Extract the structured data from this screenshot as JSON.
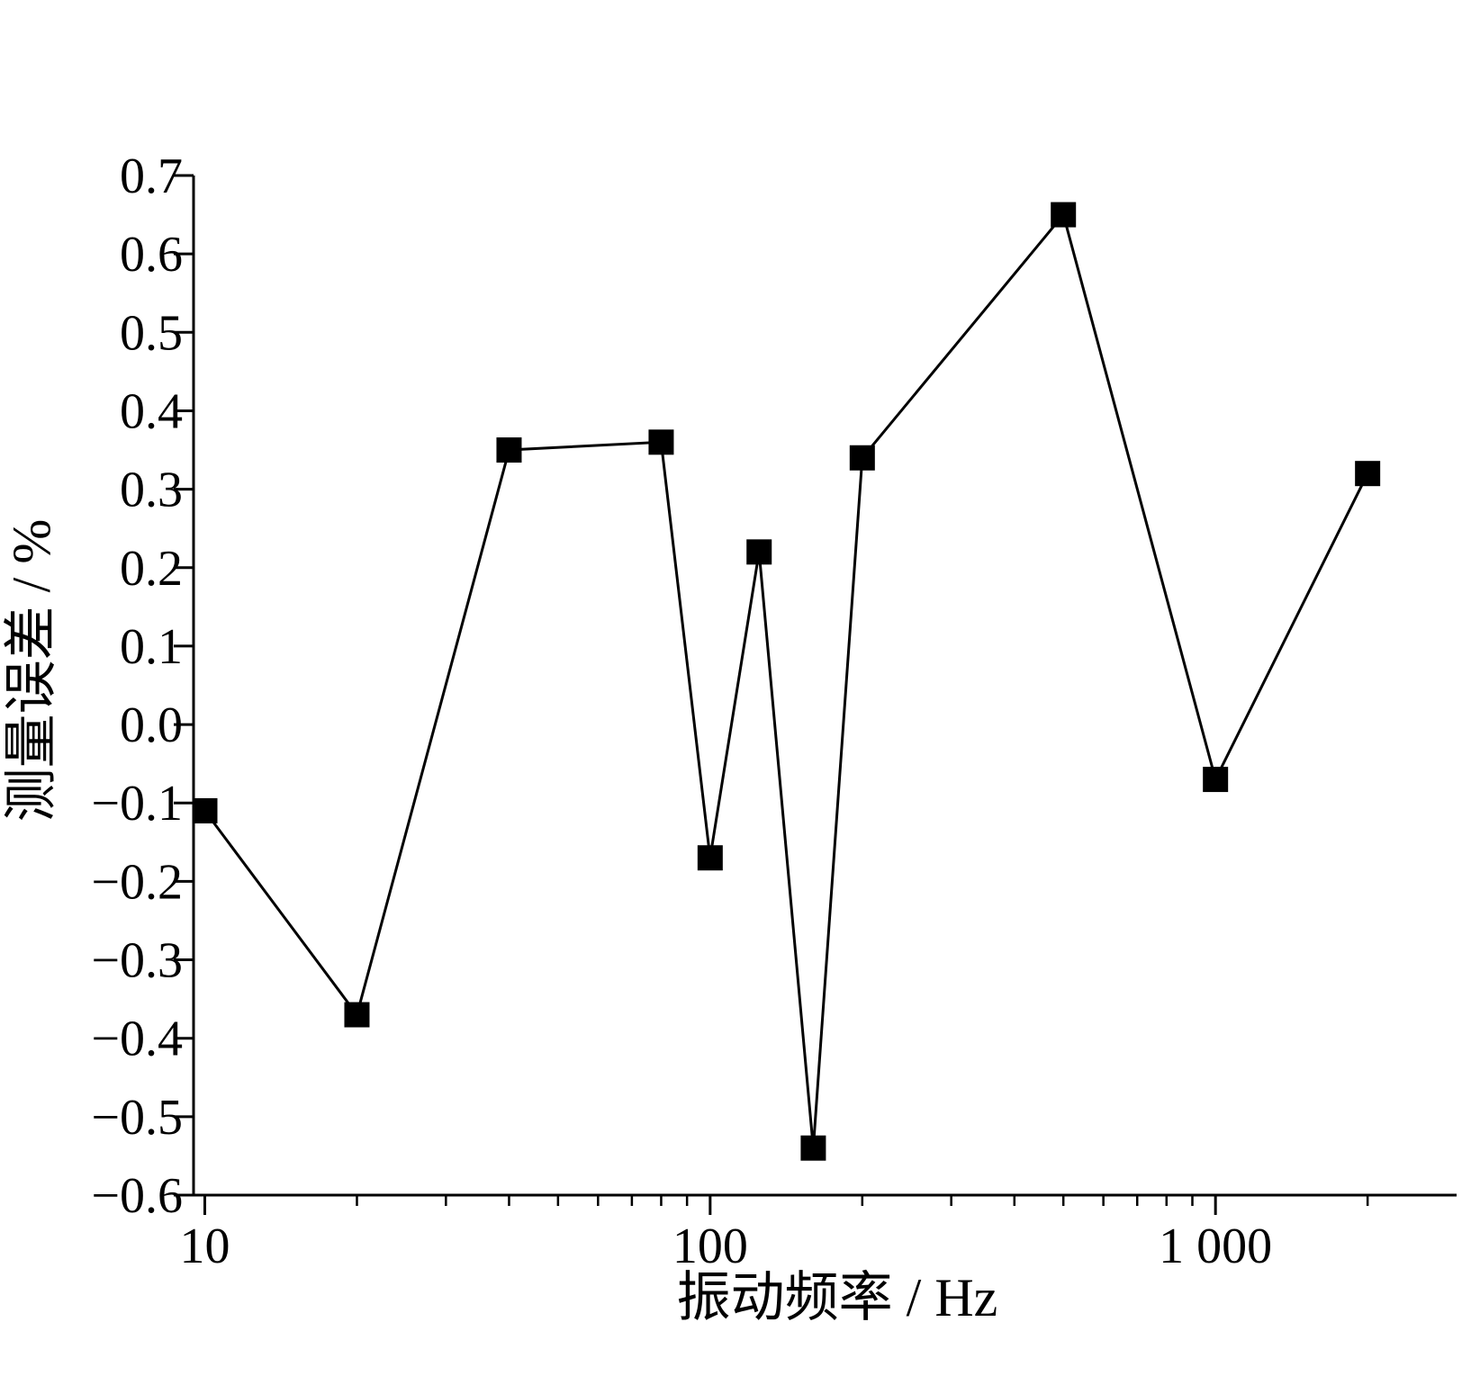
{
  "chart_data": {
    "type": "line",
    "xlabel": "振动频率 / Hz",
    "ylabel": "测量误差 / %",
    "xscale": "log",
    "xlim": [
      9.5,
      3000
    ],
    "ylim": [
      -0.6,
      0.7
    ],
    "x_ticks": [
      10,
      100,
      1000
    ],
    "x_tick_labels": [
      "10",
      "100",
      "1 000"
    ],
    "y_ticks": [
      0.7,
      0.6,
      0.5,
      0.4,
      0.3,
      0.2,
      0.1,
      0.0,
      -0.1,
      -0.2,
      -0.3,
      -0.4,
      -0.5,
      -0.6
    ],
    "y_tick_labels": [
      "0.7",
      "0.6",
      "0.5",
      "0.4",
      "0.3",
      "0.2",
      "0.1",
      "0.0",
      "−0.1",
      "−0.2",
      "−0.3",
      "−0.4",
      "−0.5",
      "−0.6"
    ],
    "grid": false,
    "marker": "square",
    "series": [
      {
        "color": "#000000",
        "x": [
          10,
          20,
          40,
          80,
          100,
          125,
          160,
          200,
          500,
          1000,
          2000
        ],
        "y": [
          -0.11,
          -0.37,
          0.35,
          0.36,
          -0.17,
          0.22,
          -0.54,
          0.34,
          0.65,
          -0.07,
          0.32
        ]
      }
    ]
  }
}
